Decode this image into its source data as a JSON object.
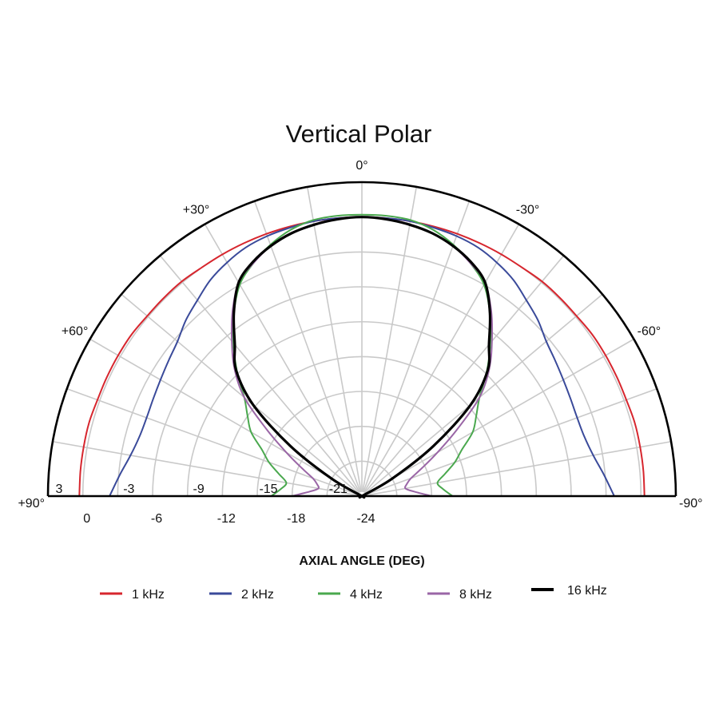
{
  "chart_data": {
    "type": "polar",
    "title": "Vertical Polar",
    "xlabel": "AXIAL ANGLE (DEG)",
    "angle_range": [
      -90,
      90
    ],
    "radial_range_db": [
      -24,
      3
    ],
    "radial_ticks_inner": [
      "3",
      "-3",
      "-9",
      "-15",
      "-21"
    ],
    "radial_ticks_inner_values": [
      3,
      -3,
      -9,
      -15,
      -21
    ],
    "radial_ticks_outer": [
      "0",
      "-6",
      "-12",
      "-18",
      "-24"
    ],
    "radial_ticks_outer_values": [
      0,
      -6,
      -12,
      -18,
      -24
    ],
    "angle_labels": [
      {
        "text": "0°",
        "angle": 0
      },
      {
        "text": "+30°",
        "angle": 30
      },
      {
        "text": "-30°",
        "angle": -30
      },
      {
        "text": "+60°",
        "angle": 60
      },
      {
        "text": "-60°",
        "angle": -60
      },
      {
        "text": "+90°",
        "angle": 90
      },
      {
        "text": "-90°",
        "angle": -90
      }
    ],
    "grid": true,
    "legend_position": "bottom",
    "angles": [
      -90,
      -85,
      -80,
      -75,
      -70,
      -65,
      -60,
      -55,
      -50,
      -45,
      -40,
      -35,
      -30,
      -25,
      -20,
      -15,
      -10,
      -5,
      0,
      5,
      10,
      15,
      20,
      25,
      30,
      35,
      40,
      45,
      50,
      55,
      60,
      65,
      70,
      75,
      80,
      85,
      90
    ],
    "series": [
      {
        "name": "1 kHz",
        "color": "#d7262e",
        "values": [
          0.3,
          0.3,
          0.3,
          0.3,
          0.2,
          0.2,
          0.2,
          0.2,
          0.1,
          0.1,
          0.1,
          0,
          0,
          0,
          0,
          0,
          0,
          0,
          0,
          0,
          0,
          0,
          0,
          0,
          0,
          0,
          0.1,
          0.1,
          0.1,
          0.2,
          0.2,
          0.2,
          0.2,
          0.3,
          0.3,
          0.3,
          0.3
        ]
      },
      {
        "name": "2 kHz",
        "color": "#3a4a9a",
        "values": [
          -2.3,
          -3.1,
          -3.8,
          -4.2,
          -4.3,
          -4.2,
          -4,
          -3.7,
          -3.3,
          -2.6,
          -2,
          -1.3,
          -0.8,
          -0.4,
          -0.2,
          -0.1,
          0,
          0,
          0,
          0,
          0,
          -0.1,
          -0.2,
          -0.4,
          -0.8,
          -1.3,
          -2,
          -2.6,
          -3.3,
          -3.7,
          -4,
          -4.2,
          -4.3,
          -4.2,
          -3.8,
          -3.1,
          -2.3
        ]
      },
      {
        "name": "4 kHz",
        "color": "#4aa84e",
        "values": [
          -16.2,
          -17,
          -17.4,
          -16.6,
          -15.5,
          -14.5,
          -13,
          -12,
          -10.8,
          -8.8,
          -6.8,
          -4.8,
          -3,
          -1.9,
          -1,
          -0.3,
          0.1,
          0.2,
          0.2,
          0.2,
          0.1,
          -0.3,
          -1,
          -1.9,
          -3,
          -4.8,
          -6.8,
          -8.8,
          -10.8,
          -12,
          -13,
          -14.5,
          -15.5,
          -16.6,
          -17.4,
          -17,
          -16.2
        ]
      },
      {
        "name": "8 kHz",
        "color": "#9a66a6",
        "values": [
          -18,
          -19.5,
          -20.2,
          -20,
          -19.5,
          -18.3,
          -16.5,
          -14,
          -10.8,
          -8.5,
          -6.6,
          -4.6,
          -2.8,
          -1.9,
          -1.1,
          -0.6,
          -0.3,
          -0.1,
          0,
          -0.1,
          -0.3,
          -0.6,
          -1.1,
          -1.9,
          -2.8,
          -4.6,
          -6.6,
          -8.5,
          -10.8,
          -14,
          -16.5,
          -18.3,
          -19.5,
          -20,
          -20.2,
          -19.5,
          -18
        ]
      },
      {
        "name": "16 kHz",
        "color": "#000000",
        "values": [
          -24,
          -24,
          -24,
          -24,
          -24,
          -24,
          -21,
          -16.5,
          -11.8,
          -8.7,
          -7,
          -4.8,
          -2.8,
          -1.8,
          -1.1,
          -0.6,
          -0.3,
          -0.1,
          0,
          -0.1,
          -0.3,
          -0.6,
          -1.1,
          -1.8,
          -2.8,
          -4.8,
          -7,
          -8.7,
          -11.8,
          -16.5,
          -21,
          -24,
          -24,
          -24,
          -24,
          -24,
          -24
        ]
      }
    ]
  }
}
